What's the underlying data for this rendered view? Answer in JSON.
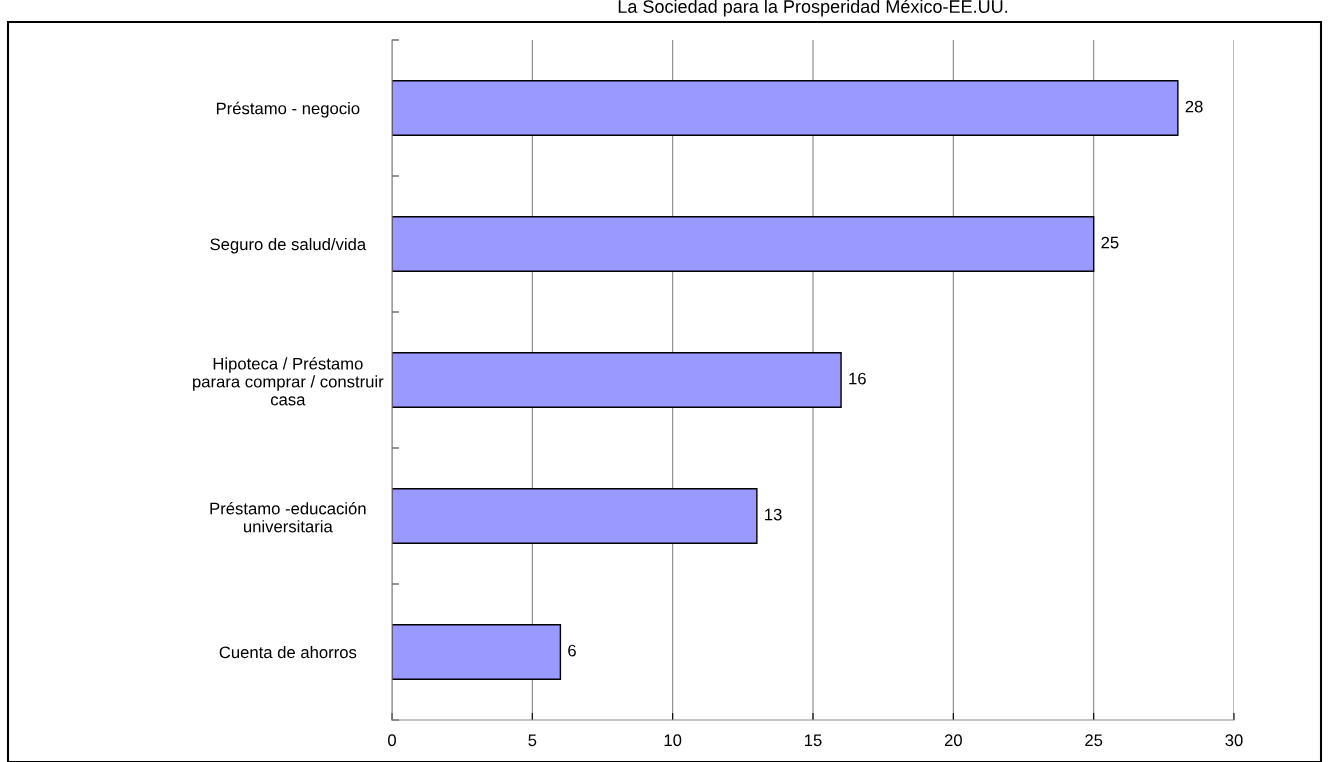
{
  "chart_data": {
    "type": "bar",
    "orientation": "horizontal",
    "title": "La Sociedad para la Prosperidad México-EE.UU.",
    "categories": [
      "Préstamo - negocio",
      "Seguro de salud/vida",
      "Hipoteca / Préstamo\nparara comprar / construir\ncasa",
      "Préstamo -educación\nuniversitaria",
      "Cuenta de ahorros"
    ],
    "values": [
      28,
      25,
      16,
      13,
      6
    ],
    "color": "#9999ff",
    "xlim": [
      0,
      30
    ],
    "xticks": [
      0,
      5,
      10,
      15,
      20,
      25,
      30
    ],
    "grid": "x",
    "data_labels": true
  }
}
